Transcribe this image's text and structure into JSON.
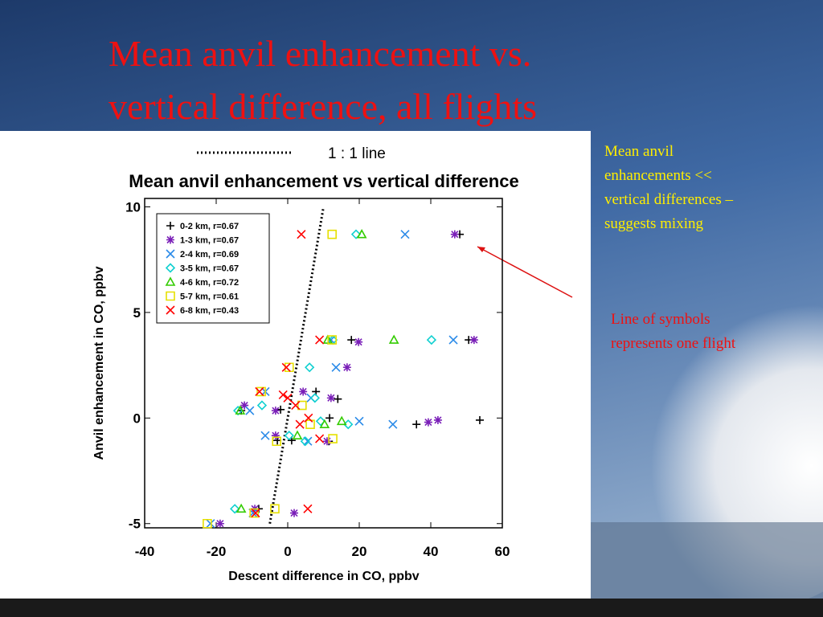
{
  "slide": {
    "title_lines": [
      "Mean anvil enhancement vs.",
      "vertical difference, all flights"
    ],
    "note_yellow": [
      "Mean anvil",
      "enhancements <<",
      "vertical differences –",
      "suggests mixing"
    ],
    "note_red": [
      "Line of symbols",
      "represents one flight"
    ]
  },
  "chart_data": {
    "type": "scatter",
    "title": "Mean anvil enhancement vs vertical difference",
    "x_label": "Descent difference in CO, ppbv",
    "y_label": "Anvil enhancement in CO, ppbv",
    "xlim": [
      -40,
      60
    ],
    "xticks": [
      -40,
      -20,
      0,
      20,
      40,
      60
    ],
    "ylim": [
      -5.2,
      10.4
    ],
    "yticks": [
      -5,
      0,
      5,
      10
    ],
    "legend": "upper left",
    "reference_line": {
      "name": "1 : 1 line",
      "x": [
        -5,
        10
      ],
      "y": [
        -5,
        10
      ]
    },
    "series": [
      {
        "name": "0-2 km, r=0.67",
        "marker": "plus",
        "color": "#000000",
        "x": [
          48.1,
          17.8,
          50.6,
          14.0,
          7.9,
          -2.0,
          36.0,
          53.7,
          11.5,
          11.7,
          1.1,
          -8.1,
          -2.9,
          -13.0
        ],
        "y": [
          8.7,
          3.7,
          3.7,
          0.9,
          1.25,
          0.4,
          -0.3,
          -0.1,
          -1.1,
          0,
          -1.06,
          -4.3,
          -1.06,
          0.35
        ]
      },
      {
        "name": "1-3 km, r=0.67",
        "marker": "star",
        "color": "#7a1fb8",
        "x": [
          46.7,
          19.8,
          52.1,
          12.1,
          4.3,
          -3.4,
          39.3,
          42.0,
          11.0,
          -3.4,
          1.8,
          -9.2,
          -18.9,
          -12.1,
          16.6
        ],
        "y": [
          8.7,
          3.6,
          3.7,
          0.95,
          1.25,
          0.35,
          -0.2,
          -0.1,
          -1.1,
          -0.83,
          -4.5,
          -4.3,
          -5,
          0.6,
          2.4
        ]
      },
      {
        "name": "2-4 km, r=0.69",
        "marker": "x",
        "color": "#2a8ae8",
        "x": [
          32.8,
          46.3,
          13.5,
          -6.3,
          6.5,
          20.0,
          29.4,
          5.6,
          -6.3,
          -10.6,
          -9.7,
          -21.6,
          12.1
        ],
        "y": [
          8.7,
          3.7,
          2.4,
          1.25,
          0.95,
          -0.15,
          -0.3,
          -1.1,
          -0.83,
          0.35,
          -4.5,
          -5,
          3.7
        ]
      },
      {
        "name": "3-5 km, r=0.67",
        "marker": "diamond",
        "color": "#10d0d0",
        "x": [
          19.1,
          40.2,
          6.1,
          7.6,
          16.9,
          9.2,
          -7.2,
          -13.9,
          -14.8,
          0.4,
          4.9,
          12.6
        ],
        "y": [
          8.7,
          3.7,
          2.4,
          0.95,
          -0.3,
          -0.15,
          0.6,
          0.35,
          -4.3,
          -0.83,
          -1.1,
          3.7
        ]
      },
      {
        "name": "4-6 km, r=0.72",
        "marker": "triangle",
        "color": "#33cc00",
        "x": [
          20.7,
          29.7,
          15.1,
          10.3,
          2.7,
          -13.0,
          -13.3,
          11.2
        ],
        "y": [
          8.7,
          3.7,
          -0.15,
          -0.3,
          -0.83,
          -4.3,
          0.35,
          3.7
        ]
      },
      {
        "name": "5-7 km, r=0.61",
        "marker": "square",
        "color": "#e6e000",
        "x": [
          12.4,
          12.4,
          0.4,
          -7.4,
          4.0,
          6.3,
          12.6,
          -3.1,
          -3.6,
          -9.4,
          -22.5
        ],
        "y": [
          8.7,
          3.7,
          2.4,
          1.25,
          0.6,
          -0.3,
          -0.98,
          -1.1,
          -4.3,
          -4.5,
          -5
        ]
      },
      {
        "name": "6-8 km, r=0.43",
        "marker": "x",
        "color": "#ff0000",
        "x": [
          3.8,
          8.9,
          -0.4,
          -7.9,
          0.0,
          2.2,
          3.4,
          5.8,
          8.9,
          5.6,
          -9.0,
          -1.3
        ],
        "y": [
          8.7,
          3.7,
          2.4,
          1.25,
          0.95,
          0.6,
          -0.3,
          0,
          -0.98,
          -4.3,
          -4.5,
          1.1
        ]
      }
    ]
  }
}
